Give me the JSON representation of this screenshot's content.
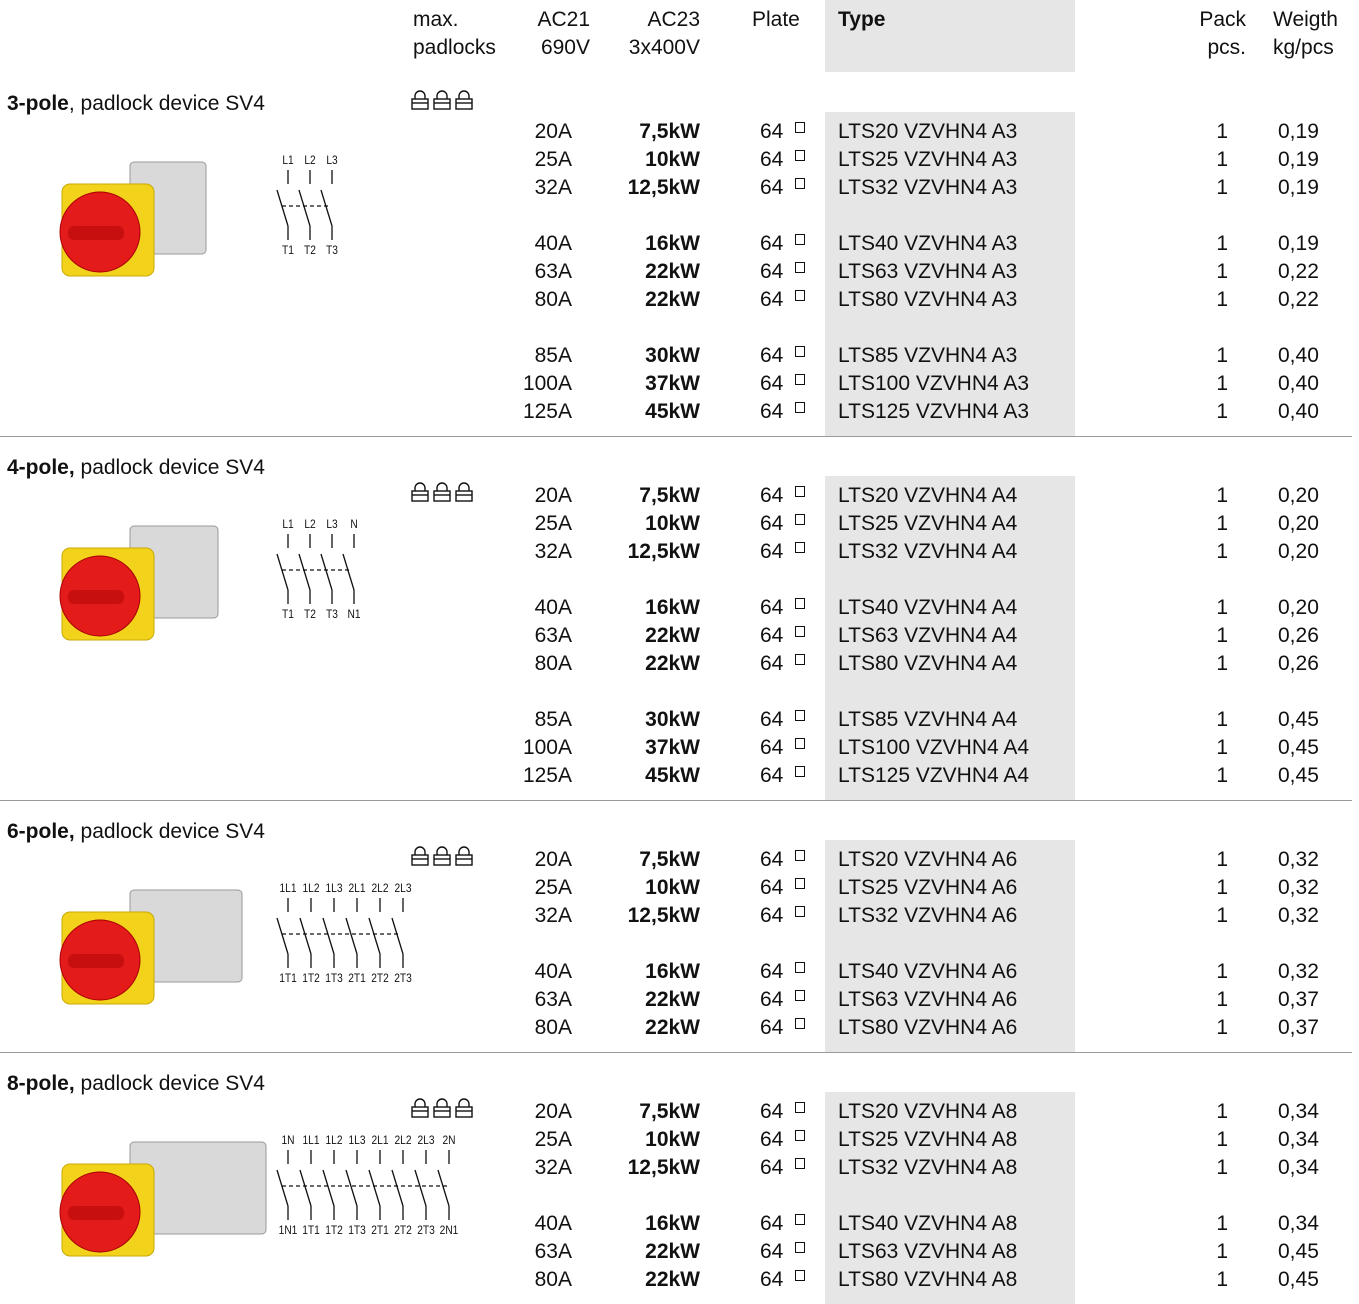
{
  "header": {
    "padlocks": [
      "max.",
      "padlocks"
    ],
    "ac21": [
      "AC21",
      "690V"
    ],
    "ac23": [
      "AC23",
      "3x400V"
    ],
    "plate": [
      "Plate"
    ],
    "type": [
      "Type"
    ],
    "pack": [
      "Pack",
      "pcs."
    ],
    "weight": [
      "Weigth",
      "kg/pcs"
    ]
  },
  "sections": [
    {
      "title_bold": "3-pole",
      "title_rest": ", padlock device SV4",
      "diagram": {
        "top": [
          "L1",
          "L2",
          "L3"
        ],
        "bottom": [
          "T1",
          "T2",
          "T3"
        ]
      },
      "groups": [
        [
          {
            "ac21": "20A",
            "ac23": "7,5kW",
            "plate": "64",
            "type": "LTS20 VZVHN4 A3",
            "pack": "1",
            "weight": "0,19"
          },
          {
            "ac21": "25A",
            "ac23": "10kW",
            "plate": "64",
            "type": "LTS25 VZVHN4 A3",
            "pack": "1",
            "weight": "0,19"
          },
          {
            "ac21": "32A",
            "ac23": "12,5kW",
            "plate": "64",
            "type": "LTS32 VZVHN4 A3",
            "pack": "1",
            "weight": "0,19"
          }
        ],
        [
          {
            "ac21": "40A",
            "ac23": "16kW",
            "plate": "64",
            "type": "LTS40 VZVHN4 A3",
            "pack": "1",
            "weight": "0,19"
          },
          {
            "ac21": "63A",
            "ac23": "22kW",
            "plate": "64",
            "type": "LTS63 VZVHN4 A3",
            "pack": "1",
            "weight": "0,22"
          },
          {
            "ac21": "80A",
            "ac23": "22kW",
            "plate": "64",
            "type": "LTS80 VZVHN4 A3",
            "pack": "1",
            "weight": "0,22"
          }
        ],
        [
          {
            "ac21": "85A",
            "ac23": "30kW",
            "plate": "64",
            "type": "LTS85 VZVHN4 A3",
            "pack": "1",
            "weight": "0,40"
          },
          {
            "ac21": "100A",
            "ac23": "37kW",
            "plate": "64",
            "type": "LTS100 VZVHN4 A3",
            "pack": "1",
            "weight": "0,40"
          },
          {
            "ac21": "125A",
            "ac23": "45kW",
            "plate": "64",
            "type": "LTS125 VZVHN4 A3",
            "pack": "1",
            "weight": "0,40"
          }
        ]
      ]
    },
    {
      "title_bold": "4-pole,",
      "title_rest": " padlock device SV4",
      "diagram": {
        "top": [
          "L1",
          "L2",
          "L3",
          "N"
        ],
        "bottom": [
          "T1",
          "T2",
          "T3",
          "N1"
        ]
      },
      "groups": [
        [
          {
            "ac21": "20A",
            "ac23": "7,5kW",
            "plate": "64",
            "type": "LTS20 VZVHN4 A4",
            "pack": "1",
            "weight": "0,20"
          },
          {
            "ac21": "25A",
            "ac23": "10kW",
            "plate": "64",
            "type": "LTS25 VZVHN4 A4",
            "pack": "1",
            "weight": "0,20"
          },
          {
            "ac21": "32A",
            "ac23": "12,5kW",
            "plate": "64",
            "type": "LTS32 VZVHN4 A4",
            "pack": "1",
            "weight": "0,20"
          }
        ],
        [
          {
            "ac21": "40A",
            "ac23": "16kW",
            "plate": "64",
            "type": "LTS40 VZVHN4 A4",
            "pack": "1",
            "weight": "0,20"
          },
          {
            "ac21": "63A",
            "ac23": "22kW",
            "plate": "64",
            "type": "LTS63 VZVHN4 A4",
            "pack": "1",
            "weight": "0,26"
          },
          {
            "ac21": "80A",
            "ac23": "22kW",
            "plate": "64",
            "type": "LTS80 VZVHN4 A4",
            "pack": "1",
            "weight": "0,26"
          }
        ],
        [
          {
            "ac21": "85A",
            "ac23": "30kW",
            "plate": "64",
            "type": "LTS85 VZVHN4 A4",
            "pack": "1",
            "weight": "0,45"
          },
          {
            "ac21": "100A",
            "ac23": "37kW",
            "plate": "64",
            "type": "LTS100 VZVHN4 A4",
            "pack": "1",
            "weight": "0,45"
          },
          {
            "ac21": "125A",
            "ac23": "45kW",
            "plate": "64",
            "type": "LTS125 VZVHN4 A4",
            "pack": "1",
            "weight": "0,45"
          }
        ]
      ]
    },
    {
      "title_bold": "6-pole,",
      "title_rest": " padlock device SV4",
      "diagram": {
        "top": [
          "1L1",
          "1L2",
          "1L3",
          "2L1",
          "2L2",
          "2L3"
        ],
        "bottom": [
          "1T1",
          "1T2",
          "1T3",
          "2T1",
          "2T2",
          "2T3"
        ]
      },
      "groups": [
        [
          {
            "ac21": "20A",
            "ac23": "7,5kW",
            "plate": "64",
            "type": "LTS20 VZVHN4 A6",
            "pack": "1",
            "weight": "0,32"
          },
          {
            "ac21": "25A",
            "ac23": "10kW",
            "plate": "64",
            "type": "LTS25 VZVHN4 A6",
            "pack": "1",
            "weight": "0,32"
          },
          {
            "ac21": "32A",
            "ac23": "12,5kW",
            "plate": "64",
            "type": "LTS32 VZVHN4 A6",
            "pack": "1",
            "weight": "0,32"
          }
        ],
        [
          {
            "ac21": "40A",
            "ac23": "16kW",
            "plate": "64",
            "type": "LTS40 VZVHN4 A6",
            "pack": "1",
            "weight": "0,32"
          },
          {
            "ac21": "63A",
            "ac23": "22kW",
            "plate": "64",
            "type": "LTS63 VZVHN4 A6",
            "pack": "1",
            "weight": "0,37"
          },
          {
            "ac21": "80A",
            "ac23": "22kW",
            "plate": "64",
            "type": "LTS80 VZVHN4 A6",
            "pack": "1",
            "weight": "0,37"
          }
        ]
      ]
    },
    {
      "title_bold": "8-pole,",
      "title_rest": " padlock device SV4",
      "diagram": {
        "top": [
          "1N",
          "1L1",
          "1L2",
          "1L3",
          "2L1",
          "2L2",
          "2L3",
          "2N"
        ],
        "bottom": [
          "1N1",
          "1T1",
          "1T2",
          "1T3",
          "2T1",
          "2T2",
          "2T3",
          "2N1"
        ]
      },
      "groups": [
        [
          {
            "ac21": "20A",
            "ac23": "7,5kW",
            "plate": "64",
            "type": "LTS20 VZVHN4 A8",
            "pack": "1",
            "weight": "0,34"
          },
          {
            "ac21": "25A",
            "ac23": "10kW",
            "plate": "64",
            "type": "LTS25 VZVHN4 A8",
            "pack": "1",
            "weight": "0,34"
          },
          {
            "ac21": "32A",
            "ac23": "12,5kW",
            "plate": "64",
            "type": "LTS32 VZVHN4 A8",
            "pack": "1",
            "weight": "0,34"
          }
        ],
        [
          {
            "ac21": "40A",
            "ac23": "16kW",
            "plate": "64",
            "type": "LTS40 VZVHN4 A8",
            "pack": "1",
            "weight": "0,34"
          },
          {
            "ac21": "63A",
            "ac23": "22kW",
            "plate": "64",
            "type": "LTS63 VZVHN4 A8",
            "pack": "1",
            "weight": "0,45"
          },
          {
            "ac21": "80A",
            "ac23": "22kW",
            "plate": "64",
            "type": "LTS80 VZVHN4 A8",
            "pack": "1",
            "weight": "0,45"
          }
        ]
      ]
    }
  ]
}
